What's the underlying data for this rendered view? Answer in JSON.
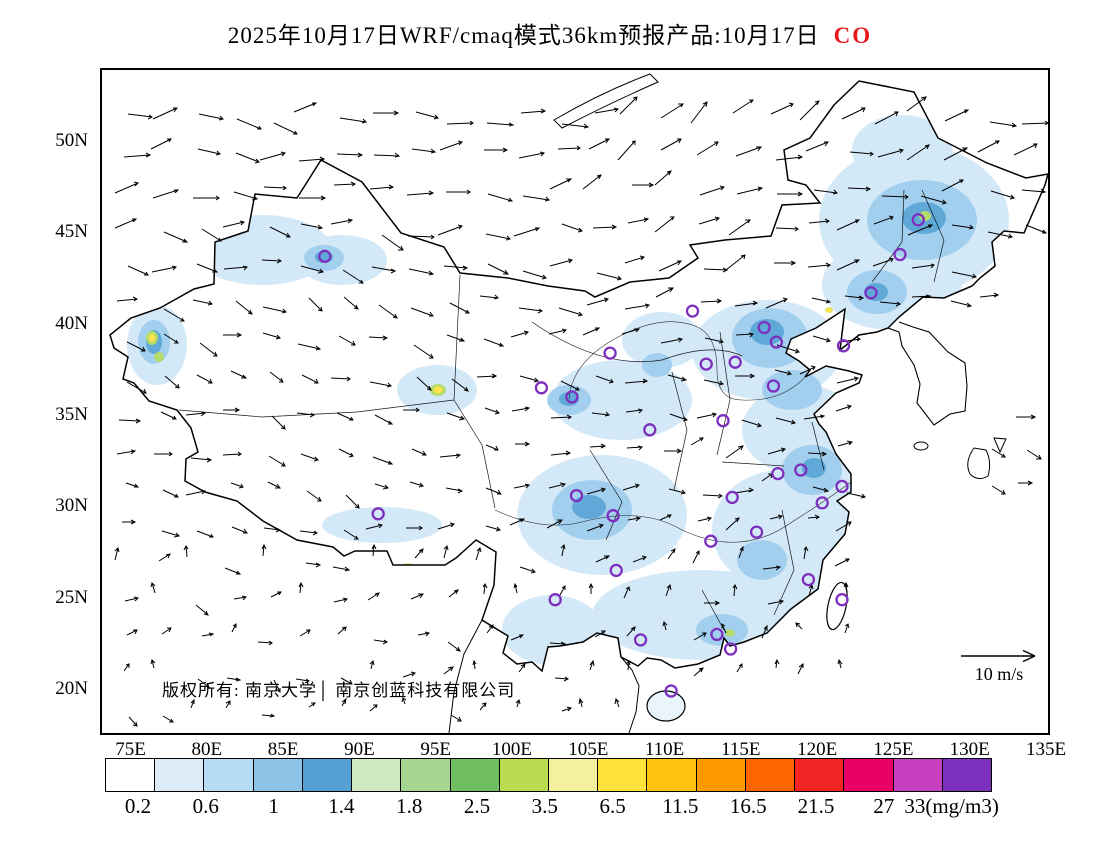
{
  "title": {
    "text": "2025年10月17日WRF/cmaq模式36km预报产品:10月17日",
    "species": "CO"
  },
  "colors": {
    "species_label": "#e8191c",
    "station_ring": "#7d2fbd",
    "shade_light": "#d4e9f8",
    "shade_mid": "#a3cfee",
    "shade_dark": "#5fa8d8"
  },
  "axes": {
    "lat_ticks": [
      "50N",
      "45N",
      "40N",
      "35N",
      "30N",
      "25N",
      "20N"
    ],
    "lon_ticks": [
      "75E",
      "80E",
      "85E",
      "90E",
      "95E",
      "100E",
      "105E",
      "110E",
      "115E",
      "120E",
      "125E",
      "130E",
      "135E"
    ]
  },
  "overlay": {
    "copyright": "版权所有: 南京大学│ 南京创蓝科技有限公司",
    "wind_scale": "10 m/s"
  },
  "colorbar": {
    "labels": [
      "0.2",
      "0.6",
      "1",
      "1.4",
      "1.8",
      "2.5",
      "3.5",
      "6.5",
      "11.5",
      "16.5",
      "21.5",
      "27",
      "33(mg/m3)"
    ],
    "colors": [
      "#ffffff",
      "#dcedf9",
      "#b6dbf2",
      "#8cc3e7",
      "#57a0d5",
      "#cfe9c2",
      "#a4d691",
      "#6fbe62",
      "#b9dc50",
      "#f4f0a0",
      "#ffe33c",
      "#ffc20e",
      "#ff9900",
      "#ff6600",
      "#f42525",
      "#e80064",
      "#c63fbe",
      "#7d2fbd"
    ]
  },
  "chart_data": {
    "type": "map",
    "variable": "CO",
    "unit": "mg/m3",
    "model": "WRF/cmaq 36km forecast",
    "forecast_date": "2025-10-17",
    "lon_range": [
      73,
      135
    ],
    "lat_range": [
      17.5,
      54
    ],
    "levels": [
      0.2,
      0.6,
      1,
      1.4,
      1.8,
      2.5,
      3.5,
      6.5,
      11.5,
      16.5,
      21.5,
      27,
      33
    ],
    "wind_reference_ms": 10,
    "stations": [
      [
        87.6,
        43.8
      ],
      [
        91.1,
        29.7
      ],
      [
        101.8,
        36.6
      ],
      [
        103.8,
        36.1
      ],
      [
        106.3,
        38.5
      ],
      [
        108.9,
        34.3
      ],
      [
        104.1,
        30.7
      ],
      [
        106.5,
        29.6
      ],
      [
        106.7,
        26.6
      ],
      [
        102.7,
        25.0
      ],
      [
        108.3,
        22.8
      ],
      [
        110.3,
        20.0
      ],
      [
        113.3,
        23.1
      ],
      [
        112.9,
        28.2
      ],
      [
        114.3,
        30.6
      ],
      [
        113.7,
        34.8
      ],
      [
        112.6,
        37.9
      ],
      [
        111.7,
        40.8
      ],
      [
        114.5,
        38.0
      ],
      [
        116.4,
        39.9
      ],
      [
        117.2,
        39.1
      ],
      [
        117.0,
        36.7
      ],
      [
        117.3,
        31.9
      ],
      [
        118.8,
        32.1
      ],
      [
        121.5,
        31.2
      ],
      [
        120.2,
        30.3
      ],
      [
        115.9,
        28.7
      ],
      [
        119.3,
        26.1
      ],
      [
        121.5,
        25.0
      ],
      [
        123.4,
        41.8
      ],
      [
        125.3,
        43.9
      ],
      [
        126.5,
        45.8
      ],
      [
        121.6,
        38.9
      ],
      [
        114.2,
        22.3
      ]
    ]
  }
}
